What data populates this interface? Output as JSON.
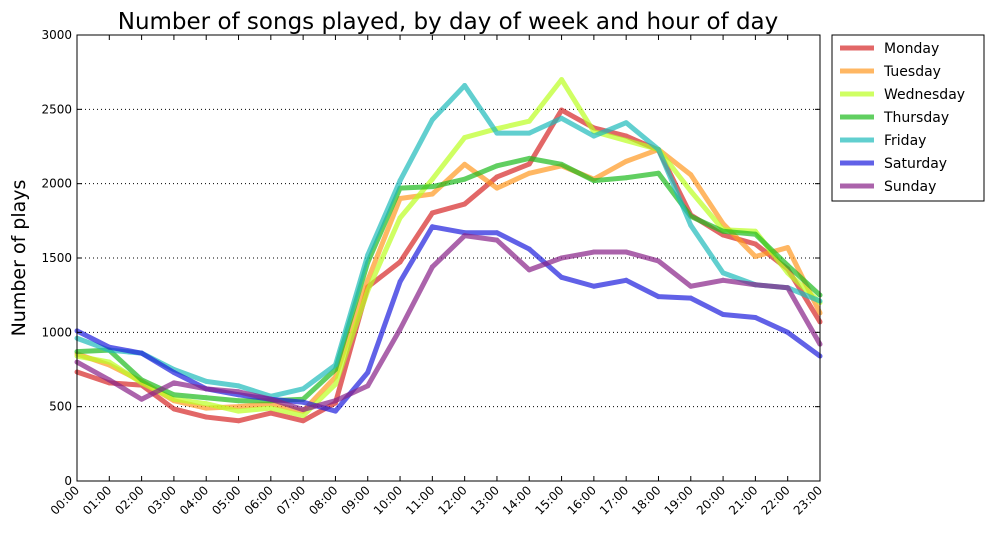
{
  "chart_data": {
    "type": "line",
    "title": "Number of songs played, by day of week and hour of day",
    "xlabel": "",
    "ylabel": "Number of plays",
    "ylim": [
      0,
      3000
    ],
    "yticks": [
      0,
      500,
      1000,
      1500,
      2000,
      2500,
      3000
    ],
    "grid": "horizontal dotted",
    "legend": "outside-right-top",
    "categories": [
      "00:00",
      "01:00",
      "02:00",
      "03:00",
      "04:00",
      "05:00",
      "06:00",
      "07:00",
      "08:00",
      "09:00",
      "10:00",
      "11:00",
      "12:00",
      "13:00",
      "14:00",
      "15:00",
      "16:00",
      "17:00",
      "18:00",
      "19:00",
      "20:00",
      "21:00",
      "22:00",
      "23:00"
    ],
    "series": [
      {
        "name": "Monday",
        "color": "#d62728",
        "values": [
          733,
          660,
          645,
          485,
          430,
          405,
          457,
          405,
          525,
          1305,
          1473,
          1803,
          1863,
          2045,
          2132,
          2495,
          2375,
          2320,
          2226,
          1789,
          1655,
          1594,
          1426,
          1070
        ]
      },
      {
        "name": "Tuesday",
        "color": "#ff9922",
        "values": [
          855,
          780,
          670,
          540,
          490,
          500,
          520,
          470,
          700,
          1350,
          1900,
          1930,
          2130,
          1970,
          2070,
          2120,
          2030,
          2150,
          2230,
          2060,
          1730,
          1510,
          1570,
          1130
        ]
      },
      {
        "name": "Wednesday",
        "color": "#bbff22",
        "values": [
          840,
          800,
          660,
          550,
          520,
          470,
          490,
          440,
          650,
          1280,
          1770,
          2030,
          2310,
          2370,
          2420,
          2700,
          2350,
          2290,
          2230,
          1950,
          1690,
          1680,
          1400,
          1200
        ]
      },
      {
        "name": "Thursday",
        "color": "#1fbb1f",
        "values": [
          870,
          880,
          680,
          580,
          560,
          540,
          540,
          550,
          750,
          1470,
          1970,
          1980,
          2030,
          2120,
          2170,
          2130,
          2020,
          2040,
          2070,
          1780,
          1680,
          1660,
          1450,
          1250
        ]
      },
      {
        "name": "Friday",
        "color": "#1fbbbb",
        "values": [
          960,
          880,
          860,
          750,
          670,
          640,
          570,
          620,
          780,
          1520,
          2020,
          2430,
          2660,
          2340,
          2340,
          2440,
          2320,
          2410,
          2230,
          1720,
          1400,
          1320,
          1300,
          1210
        ]
      },
      {
        "name": "Saturday",
        "color": "#1f1fdd",
        "values": [
          1010,
          900,
          860,
          730,
          620,
          580,
          550,
          530,
          470,
          730,
          1340,
          1710,
          1670,
          1670,
          1560,
          1370,
          1310,
          1350,
          1240,
          1230,
          1120,
          1100,
          1000,
          840
        ]
      },
      {
        "name": "Sunday",
        "color": "#882288",
        "values": [
          800,
          680,
          550,
          660,
          620,
          600,
          550,
          480,
          540,
          640,
          1020,
          1440,
          1650,
          1620,
          1420,
          1500,
          1540,
          1540,
          1480,
          1310,
          1350,
          1320,
          1300,
          920
        ]
      }
    ]
  }
}
